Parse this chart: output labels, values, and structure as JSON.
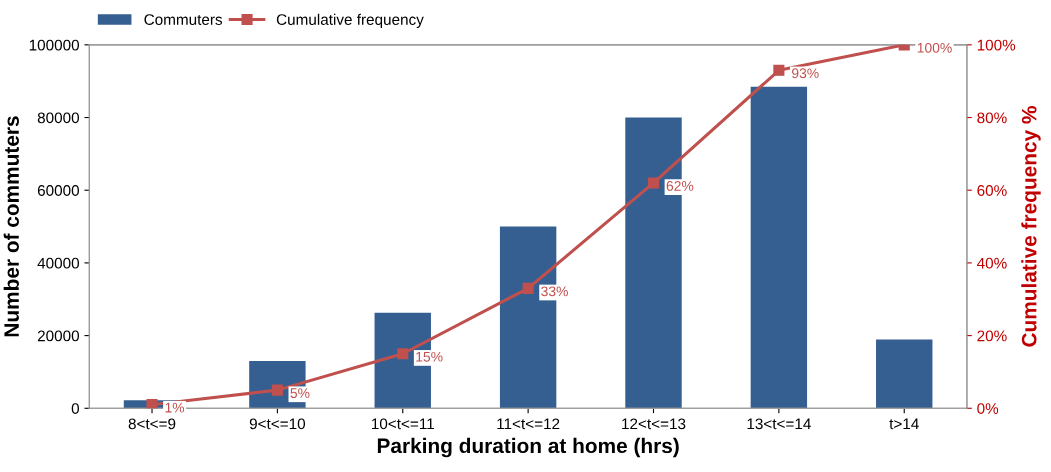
{
  "chart_data": {
    "type": "bar",
    "xlabel": "Parking duration at home (hrs)",
    "ylabel": "Number of commuters",
    "y2label": "Cumulative frequency %",
    "categories": [
      "8<t<=9",
      "9<t<=10",
      "10<t<=11",
      "11<t<=12",
      "12<t<=13",
      "13<t<=14",
      "t>14"
    ],
    "series": [
      {
        "name": "Commuters",
        "color": "#365f91",
        "values": [
          2200,
          13000,
          26300,
          50000,
          80000,
          88500,
          18900
        ]
      },
      {
        "name": "Cumulative frequency",
        "type": "line",
        "axis": "y2",
        "color": "#c0504d",
        "marker": "square",
        "values": [
          1,
          5,
          15,
          33,
          62,
          93,
          100
        ],
        "value_labels": [
          "1%",
          "5%",
          "15%",
          "33%",
          "62%",
          "93%",
          "100%"
        ]
      }
    ],
    "ylim": [
      0,
      100000
    ],
    "yticks": [
      0,
      20000,
      40000,
      60000,
      80000,
      100000
    ],
    "y2lim": [
      0,
      100
    ],
    "y2ticks": [
      {
        "value": 0,
        "label": "0%"
      },
      {
        "value": 20,
        "label": "20%"
      },
      {
        "value": 40,
        "label": "40%"
      },
      {
        "value": 60,
        "label": "60%"
      },
      {
        "value": 80,
        "label": "80%"
      },
      {
        "value": 100,
        "label": "100%"
      }
    ],
    "grid": false,
    "legend": "top left"
  }
}
